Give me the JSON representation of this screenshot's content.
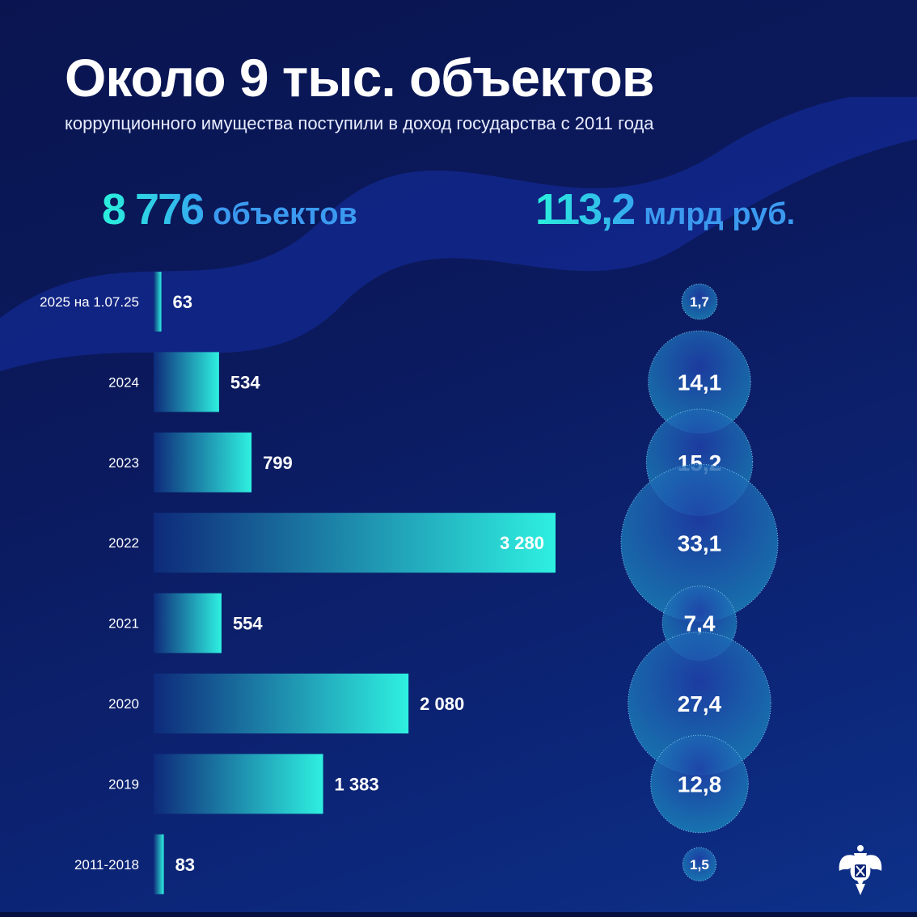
{
  "header": {
    "title": "Около 9 тыс. объектов",
    "subtitle": "коррупционного имущества поступили в доход государства с 2011 года"
  },
  "totals": {
    "objects_value": "8 776",
    "objects_unit": "объектов",
    "money_value": "113,2",
    "money_unit": "млрд руб."
  },
  "colors": {
    "bar_start": "#0e2a7a",
    "bar_end": "#2ef0e0",
    "accent": "#2af0dc",
    "bubble": "#1b5bb5"
  },
  "icons": {
    "emblem": "double-headed-eagle-emblem"
  },
  "chart_data": {
    "type": "bar",
    "orientation": "horizontal",
    "categories": [
      "2025 на 1.07.25",
      "2024",
      "2023",
      "2022",
      "2021",
      "2020",
      "2019",
      "2011-2018"
    ],
    "series": [
      {
        "name": "объектов",
        "values": [
          63,
          534,
          799,
          3280,
          554,
          2080,
          1383,
          83
        ],
        "labels": [
          "63",
          "534",
          "799",
          "3 280",
          "554",
          "2 080",
          "1 383",
          "83"
        ]
      },
      {
        "name": "млрд руб.",
        "type": "bubble",
        "values": [
          1.7,
          14.1,
          15.2,
          33.1,
          7.4,
          27.4,
          12.8,
          1.5
        ],
        "labels": [
          "1,7",
          "14,1",
          "15,2",
          "33,1",
          "7,4",
          "27,4",
          "12,8",
          "1,5"
        ]
      }
    ]
  }
}
